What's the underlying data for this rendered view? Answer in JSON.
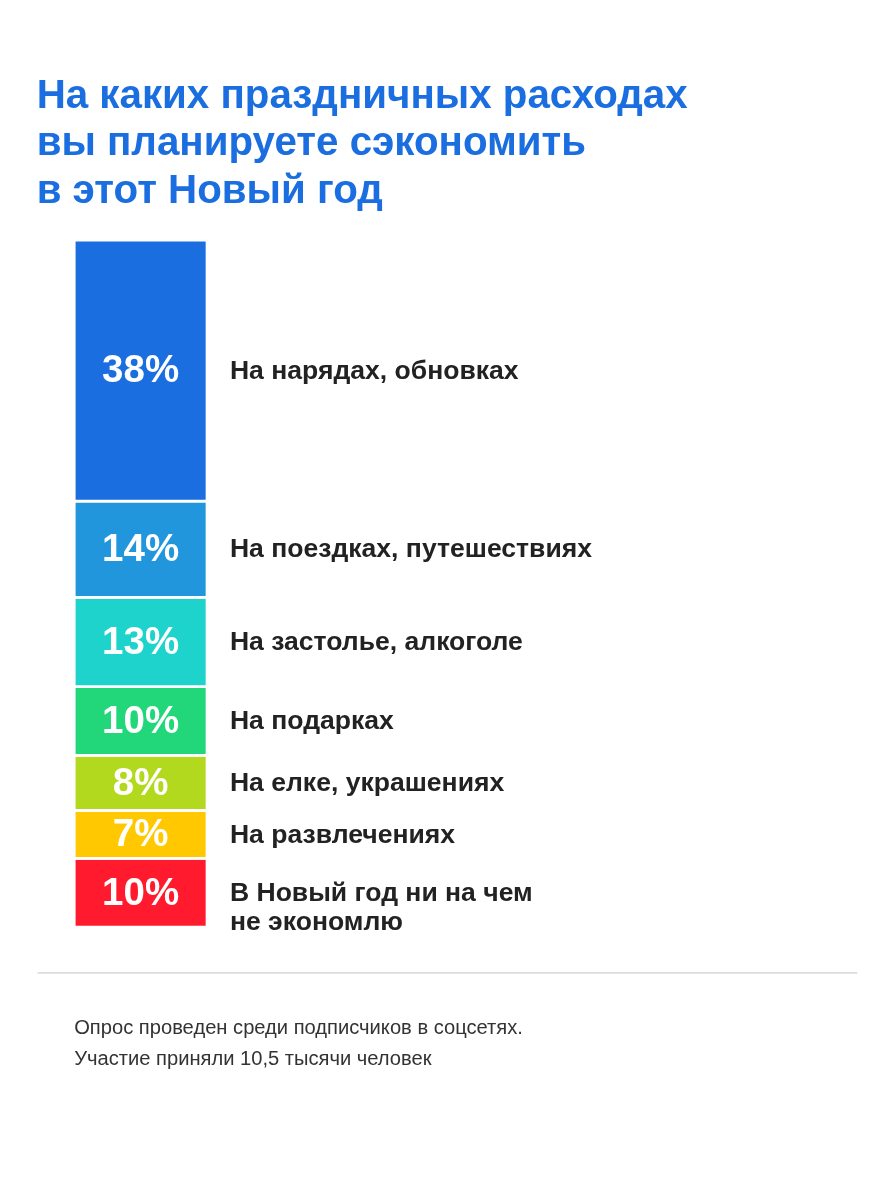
{
  "chart_data": {
    "type": "bar",
    "stacked": true,
    "title": "На каких праздничных расходах\nвы планируете сэкономить\nв этот Новый год",
    "categories": [
      null
    ],
    "series": [
      {
        "name": "В Новый год ни на чем\nне экономлю",
        "color": "#ff1b2d",
        "values": [
          10
        ],
        "value_labels": [
          "10%"
        ]
      },
      {
        "name": "На развлечениях",
        "color": "#ffc800",
        "values": [
          7
        ],
        "value_labels": [
          "7%"
        ]
      },
      {
        "name": "На елке, украшениях",
        "color": "#b3d91e",
        "values": [
          8
        ],
        "value_labels": [
          "8%"
        ]
      },
      {
        "name": "На подарках",
        "color": "#22d67a",
        "values": [
          10
        ],
        "value_labels": [
          "10%"
        ]
      },
      {
        "name": "На застолье, алкоголе",
        "color": "#1dd3cb",
        "values": [
          13
        ],
        "value_labels": [
          "13%"
        ]
      },
      {
        "name": "На поездках, путешествиях",
        "color": "#2196dc",
        "values": [
          14
        ],
        "value_labels": [
          "14%"
        ]
      },
      {
        "name": "На нарядах, обновках",
        "color": "#1a6ee0",
        "values": [
          38
        ],
        "value_labels": [
          "38%"
        ]
      }
    ],
    "annotations": [
      "Опрос проведен среди подписчиков в соцсетях.\nУчастие приняли 10,5 тысячи человек"
    ]
  }
}
